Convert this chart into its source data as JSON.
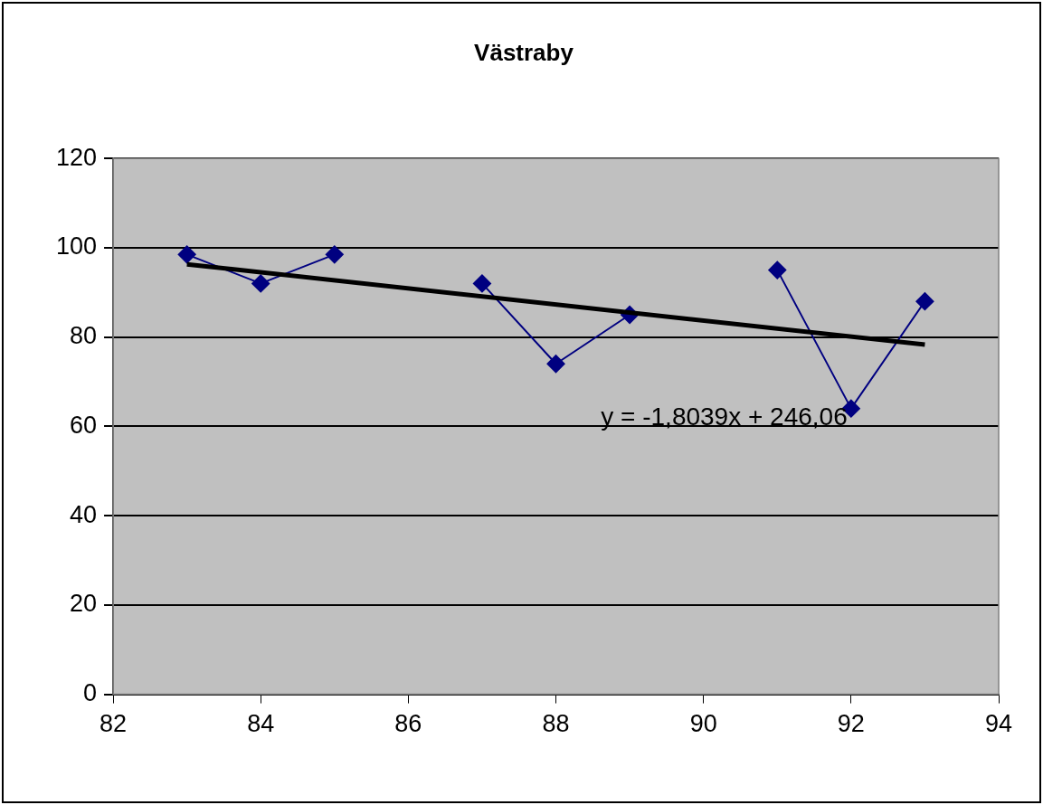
{
  "chart_data": {
    "type": "line",
    "title": "Västraby",
    "x": [
      83,
      84,
      85,
      86,
      87,
      88,
      89,
      90,
      91,
      92,
      93
    ],
    "series": [
      {
        "color": "#000080",
        "values": [
          98.5,
          92,
          98.5,
          null,
          92,
          74,
          85,
          null,
          95,
          64,
          88
        ]
      },
      {
        "type": "line",
        "color": "#000000",
        "x": [
          83,
          93
        ],
        "values": [
          96.3,
          78.3
        ],
        "marker": "none"
      }
    ],
    "xlim": [
      82,
      94
    ],
    "xticks": [
      82,
      84,
      86,
      88,
      90,
      92,
      94
    ],
    "ylim": [
      0,
      120
    ],
    "yticks": [
      0,
      20,
      40,
      60,
      80,
      100,
      120
    ],
    "grid": "y",
    "legend": false,
    "marker": "diamond",
    "annotations": [
      "y = -1,8039x + 246,06"
    ]
  }
}
